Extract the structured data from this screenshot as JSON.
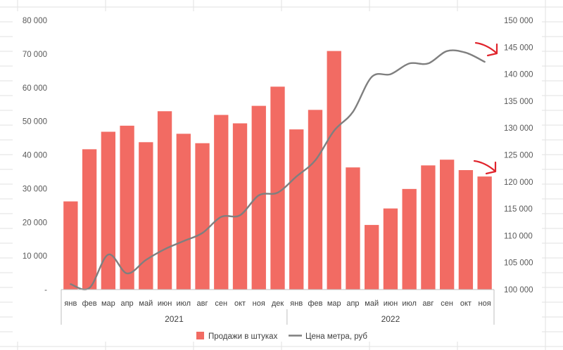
{
  "chart_data": {
    "type": "bar",
    "title": "",
    "xlabel": "",
    "ylabel": "",
    "categories": [
      "янв",
      "фев",
      "мар",
      "апр",
      "май",
      "июн",
      "июл",
      "авг",
      "сен",
      "окт",
      "ноя",
      "дек",
      "янв",
      "фев",
      "мар",
      "апр",
      "май",
      "июн",
      "июл",
      "авг",
      "сен",
      "окт",
      "ноя"
    ],
    "groups": [
      {
        "label": "2021",
        "start": 0,
        "end": 11
      },
      {
        "label": "2022",
        "start": 12,
        "end": 22
      }
    ],
    "series": [
      {
        "name": "Продажи в штуках",
        "type": "bar",
        "axis": "left",
        "color": "#f26b63",
        "values": [
          26200,
          41700,
          46900,
          48700,
          43800,
          53000,
          46300,
          43500,
          51900,
          49400,
          54600,
          60300,
          47600,
          53400,
          70900,
          36300,
          19200,
          24100,
          29900,
          36900,
          38600,
          35500,
          33600
        ]
      },
      {
        "name": "Цена метра, руб",
        "type": "line",
        "axis": "right",
        "color": "#7f7f7f",
        "values": [
          101000,
          100300,
          106500,
          103000,
          105500,
          107500,
          109000,
          110500,
          113500,
          113800,
          117500,
          118000,
          121000,
          124000,
          129500,
          133000,
          139500,
          140000,
          142000,
          142000,
          144300,
          144000,
          142300
        ]
      }
    ],
    "ylim": [
      0,
      80000
    ],
    "y2lim": [
      100000,
      150000
    ],
    "y_ticks": [
      "-",
      "10 000",
      "20 000",
      "30 000",
      "40 000",
      "50 000",
      "60 000",
      "70 000",
      "80 000"
    ],
    "y2_ticks": [
      "100 000",
      "105 000",
      "110 000",
      "115 000",
      "120 000",
      "125 000",
      "130 000",
      "135 000",
      "140 000",
      "145 000",
      "150 000"
    ],
    "grid": false,
    "legend": "bottom",
    "annotations": [
      "red-arrow-top-right",
      "red-arrow-middle-right"
    ],
    "accent_color": "#e0242c"
  }
}
